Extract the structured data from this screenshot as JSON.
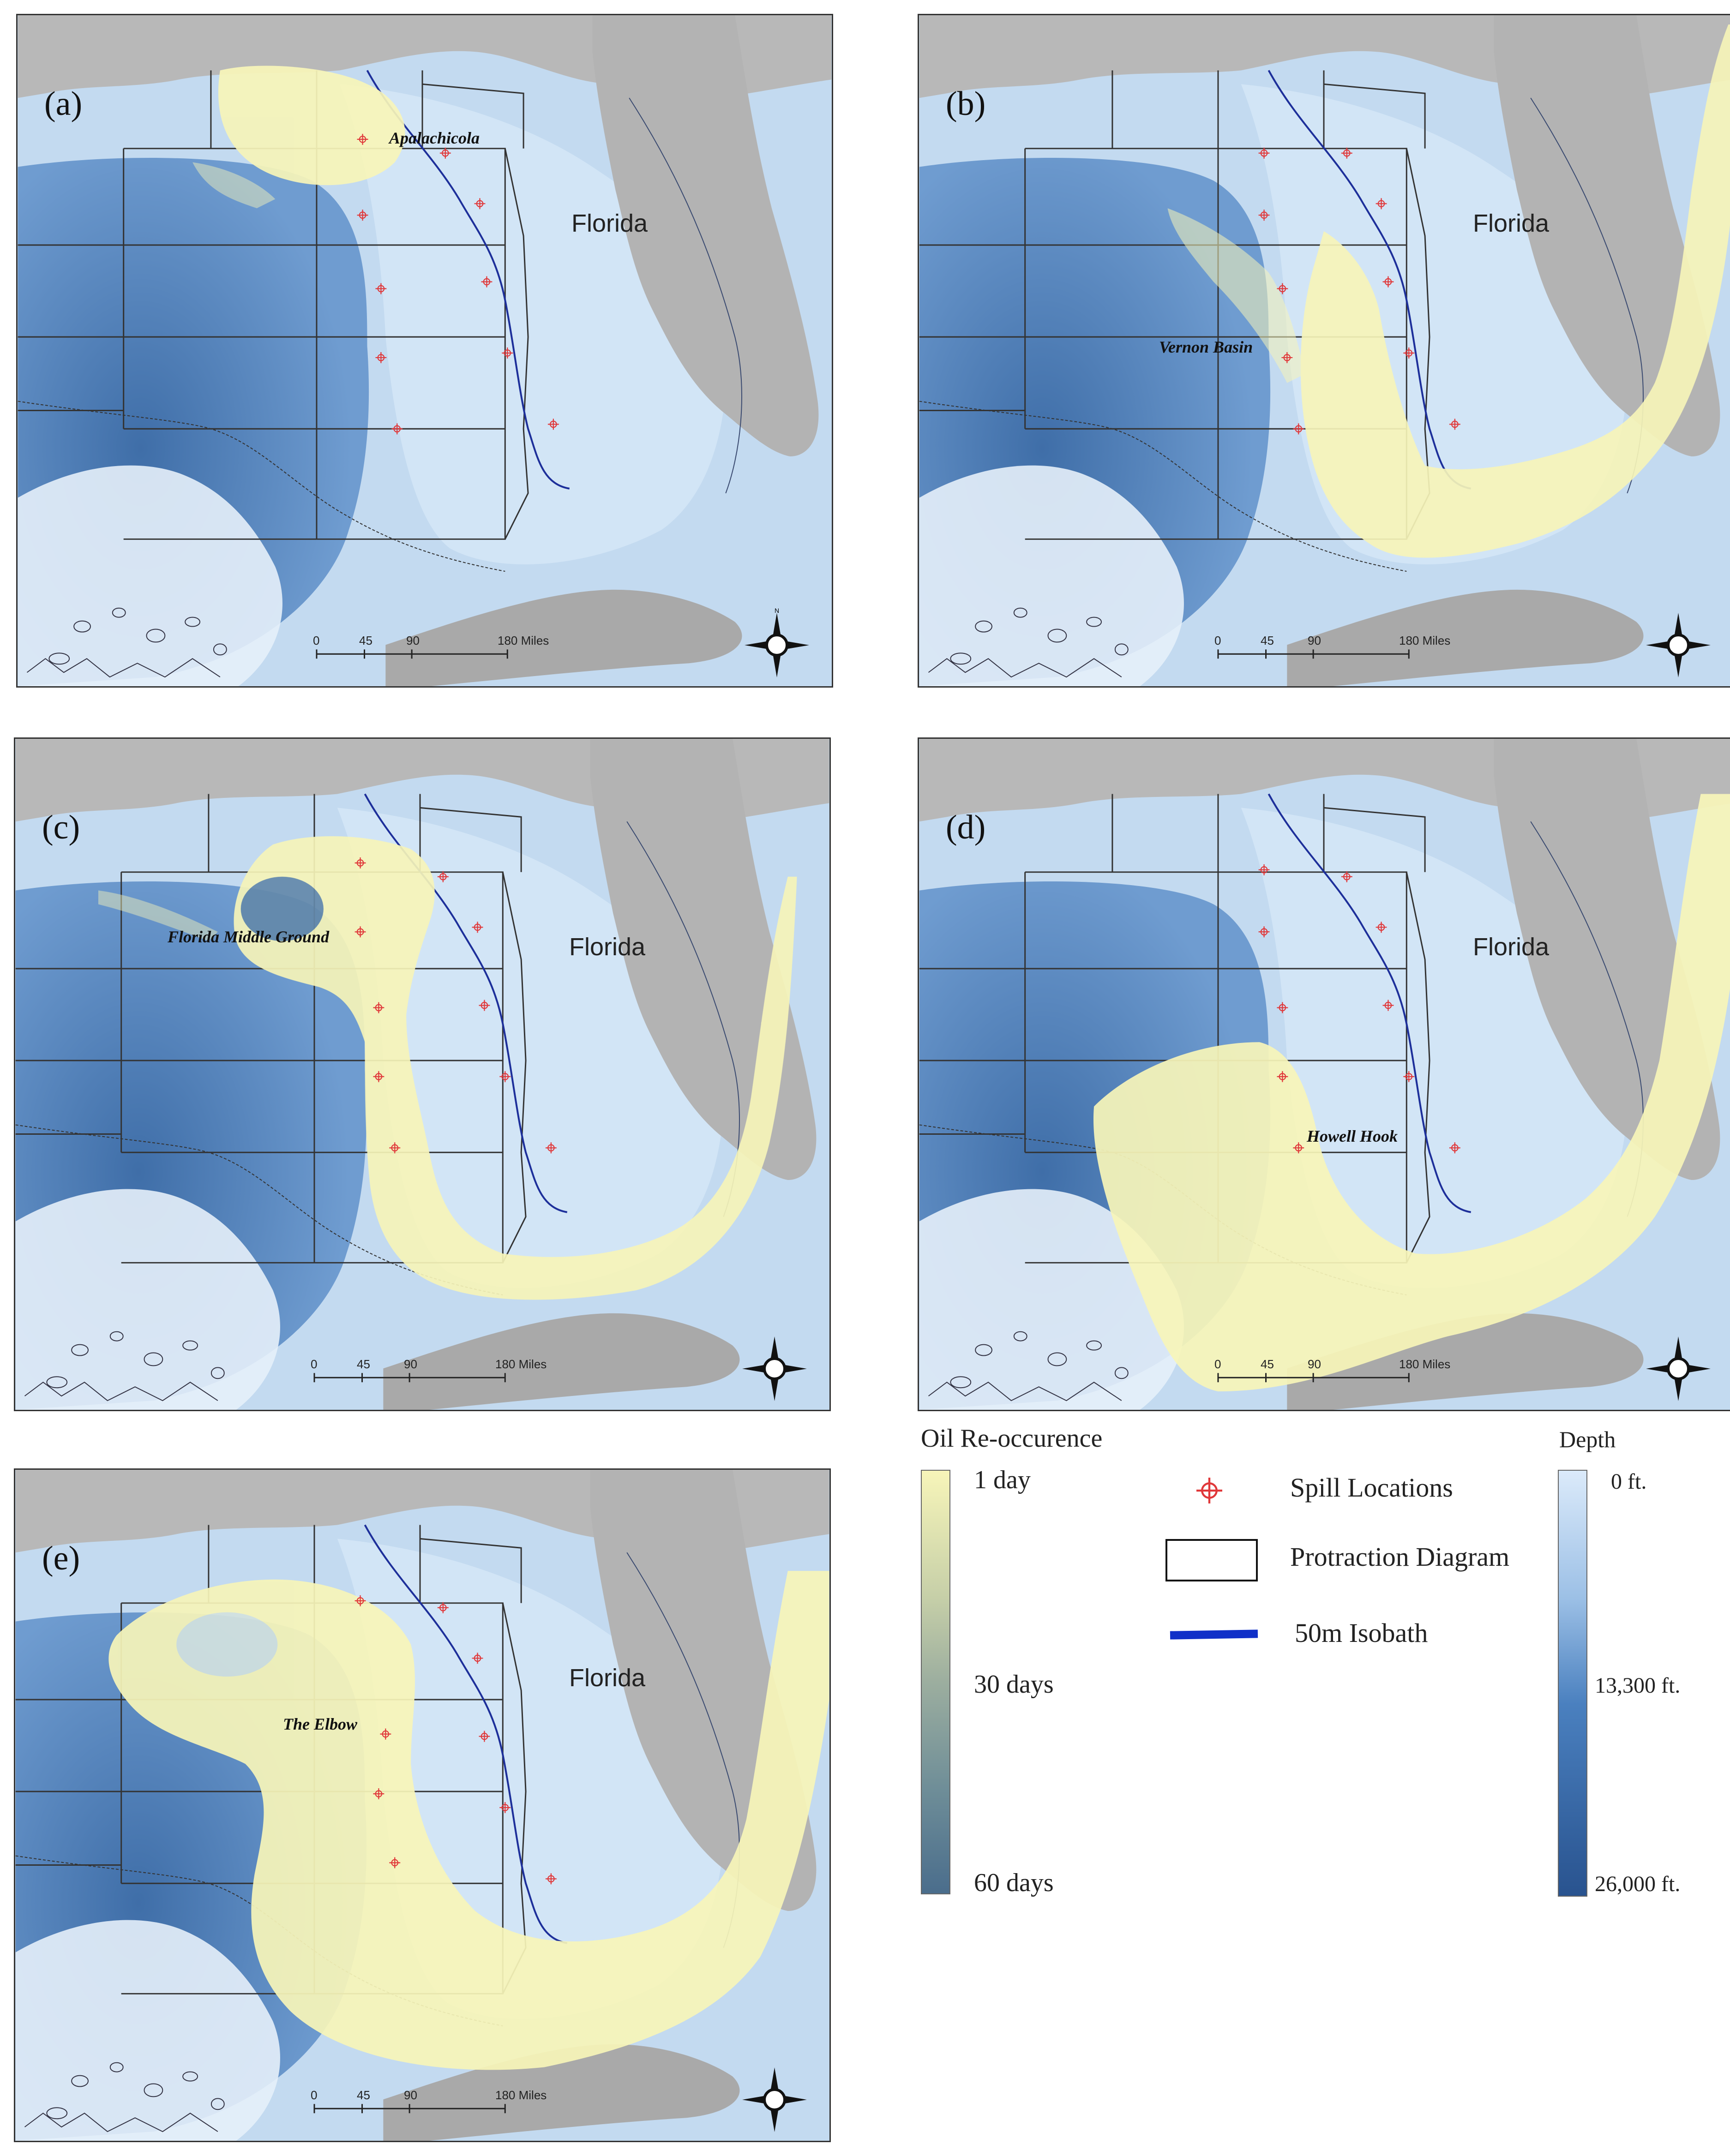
{
  "panels": [
    {
      "label": "(a)",
      "state": "Florida",
      "site": "Apalachicola"
    },
    {
      "label": "(b)",
      "state": "Florida",
      "site": "Vernon Basin"
    },
    {
      "label": "(c)",
      "state": "Florida",
      "site": "Florida Middle Ground"
    },
    {
      "label": "(d)",
      "state": "Florida",
      "site": "Howell Hook"
    },
    {
      "label": "(e)",
      "state": "Florida",
      "site": "The Elbow"
    }
  ],
  "scalebar": {
    "ticks": [
      "0",
      "45",
      "90",
      "180 Miles"
    ]
  },
  "compass": {
    "north": "N",
    "south": "S",
    "east": "E",
    "west": "W"
  },
  "legend": {
    "oil_title": "Oil Re-occurence",
    "oil_labels": [
      "1 day",
      "30 days",
      "60 days"
    ],
    "oil_colors": [
      "#f7f5b9",
      "#8aa39a",
      "#4a6d8c"
    ],
    "symbols": [
      {
        "icon": "crosshair-icon",
        "label": "Spill Locations",
        "color": "#e0383a"
      },
      {
        "icon": "rectangle-outline-icon",
        "label": "Protraction Diagram"
      },
      {
        "icon": "blue-line-icon",
        "label": "50m Isobath",
        "color": "#1030c8"
      }
    ],
    "depth_title": "Depth",
    "depth_labels": [
      "0 ft.",
      "13,300 ft.",
      "26,000 ft."
    ],
    "depth_colors": [
      "#dbeafa",
      "#4a80bf",
      "#29538f"
    ]
  }
}
